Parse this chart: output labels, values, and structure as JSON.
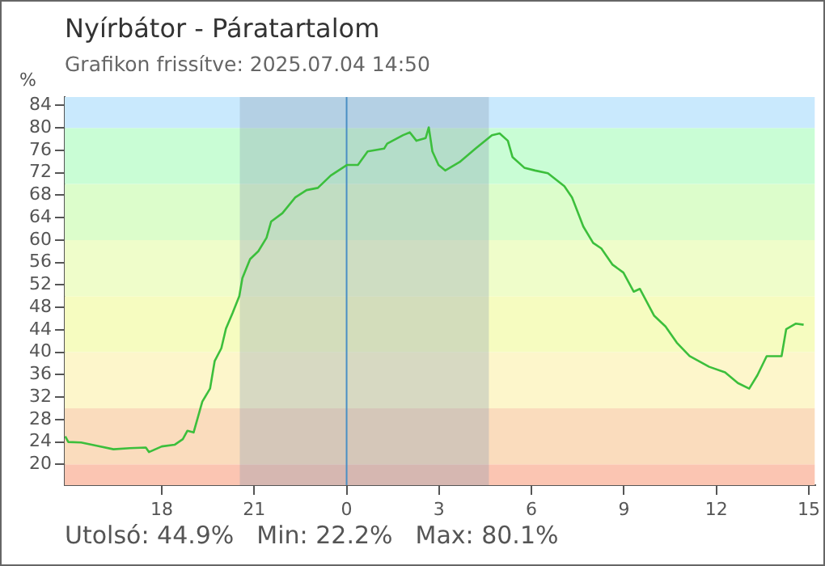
{
  "chart_data": {
    "type": "line",
    "title": "Nyírbátor - Páratartalom",
    "subtitle": "Grafikon frissítve: 2025.07.04 14:50",
    "ylabel": "%",
    "annotations": [
      "Utolsó: 44.9%",
      "Min: 22.2%",
      "Max: 80.1%"
    ],
    "xlim": [
      "2025-07-03T14:51",
      "2025-07-04T15:12"
    ],
    "xticks": [
      {
        "value": "2025-07-03T18:00",
        "label": "18"
      },
      {
        "value": "2025-07-03T21:00",
        "label": "21"
      },
      {
        "value": "2025-07-04T00:00",
        "label": "0"
      },
      {
        "value": "2025-07-04T03:00",
        "label": "3"
      },
      {
        "value": "2025-07-04T06:00",
        "label": "6"
      },
      {
        "value": "2025-07-04T09:00",
        "label": "9"
      },
      {
        "value": "2025-07-04T12:00",
        "label": "12"
      },
      {
        "value": "2025-07-04T15:00",
        "label": "15"
      }
    ],
    "ylim": [
      16.3,
      85.5
    ],
    "yticks": [
      20,
      24,
      28,
      32,
      36,
      40,
      44,
      48,
      52,
      56,
      60,
      64,
      68,
      72,
      76,
      80,
      84
    ],
    "grid": false,
    "legend": false,
    "bands": [
      {
        "axis": "y",
        "from": 16.3,
        "to": 20,
        "color": "#fbc5b2"
      },
      {
        "axis": "y",
        "from": 20,
        "to": 30,
        "color": "#fadcbd"
      },
      {
        "axis": "y",
        "from": 30,
        "to": 40,
        "color": "#fdf6cb"
      },
      {
        "axis": "y",
        "from": 40,
        "to": 50,
        "color": "#f6fcc0"
      },
      {
        "axis": "y",
        "from": 50,
        "to": 60,
        "color": "#effdca"
      },
      {
        "axis": "y",
        "from": 60,
        "to": 70,
        "color": "#dcfdcb"
      },
      {
        "axis": "y",
        "from": 70,
        "to": 80,
        "color": "#c9fdd5"
      },
      {
        "axis": "y",
        "from": 80,
        "to": 85.5,
        "color": "#c9e9fd"
      },
      {
        "axis": "x",
        "from": "2025-07-03T20:32",
        "to": "2025-07-04T04:37",
        "color": "#8a9cb0"
      }
    ],
    "ref_lines": [
      {
        "axis": "x",
        "value": "2025-07-04T00:00",
        "color": "#4a8fc4"
      }
    ],
    "series": [
      {
        "color": "#3cbf3c",
        "x": [
          "2025-07-03T14:52",
          "2025-07-03T14:58",
          "2025-07-03T15:23",
          "2025-07-03T15:55",
          "2025-07-03T16:26",
          "2025-07-03T16:58",
          "2025-07-03T17:29",
          "2025-07-03T17:35",
          "2025-07-03T18:00",
          "2025-07-03T18:25",
          "2025-07-03T18:41",
          "2025-07-03T18:50",
          "2025-07-03T19:02",
          "2025-07-03T19:19",
          "2025-07-03T19:34",
          "2025-07-03T19:43",
          "2025-07-03T19:56",
          "2025-07-03T20:05",
          "2025-07-03T20:18",
          "2025-07-03T20:31",
          "2025-07-03T20:37",
          "2025-07-03T20:52",
          "2025-07-03T21:08",
          "2025-07-03T21:24",
          "2025-07-03T21:33",
          "2025-07-03T21:55",
          "2025-07-03T22:20",
          "2025-07-03T22:42",
          "2025-07-03T23:04",
          "2025-07-03T23:29",
          "2025-07-04T00:01",
          "2025-07-04T00:22",
          "2025-07-04T00:41",
          "2025-07-04T01:13",
          "2025-07-04T01:19",
          "2025-07-04T01:50",
          "2025-07-04T02:03",
          "2025-07-04T02:16",
          "2025-07-04T02:34",
          "2025-07-04T02:40",
          "2025-07-04T02:47",
          "2025-07-04T02:59",
          "2025-07-04T03:12",
          "2025-07-04T03:40",
          "2025-07-04T04:11",
          "2025-07-04T04:43",
          "2025-07-04T04:58",
          "2025-07-04T05:14",
          "2025-07-04T05:23",
          "2025-07-04T05:46",
          "2025-07-04T06:07",
          "2025-07-04T06:32",
          "2025-07-04T07:04",
          "2025-07-04T07:19",
          "2025-07-04T07:41",
          "2025-07-04T08:00",
          "2025-07-04T08:16",
          "2025-07-04T08:38",
          "2025-07-04T08:59",
          "2025-07-04T09:19",
          "2025-07-04T09:31",
          "2025-07-04T09:59",
          "2025-07-04T10:21",
          "2025-07-04T10:43",
          "2025-07-04T11:08",
          "2025-07-04T11:46",
          "2025-07-04T12:17",
          "2025-07-04T12:42",
          "2025-07-04T13:04",
          "2025-07-04T13:20",
          "2025-07-04T13:38",
          "2025-07-04T14:07",
          "2025-07-04T14:16",
          "2025-07-04T14:35",
          "2025-07-04T14:50"
        ],
        "values": [
          25,
          24,
          23.9,
          23.3,
          22.7,
          22.9,
          23,
          22.2,
          23.2,
          23.5,
          24.5,
          26,
          25.7,
          31.2,
          33.5,
          38.4,
          40.7,
          44.2,
          47,
          50,
          53.2,
          56.6,
          58,
          60.4,
          63.3,
          64.8,
          67.6,
          68.9,
          69.3,
          71.5,
          73.4,
          73.4,
          75.8,
          76.3,
          77.2,
          78.7,
          79.2,
          77.7,
          78.2,
          80.1,
          75.8,
          73.4,
          72.4,
          73.9,
          76.3,
          78.7,
          79,
          77.7,
          74.8,
          72.9,
          72.4,
          71.9,
          69.6,
          67.6,
          62.4,
          59.5,
          58.5,
          55.6,
          54.2,
          50.8,
          51.3,
          46.5,
          44.6,
          41.7,
          39.3,
          37.4,
          36.4,
          34.5,
          33.5,
          35.9,
          39.3,
          39.3,
          44.1,
          45.1,
          44.9
        ]
      }
    ]
  }
}
